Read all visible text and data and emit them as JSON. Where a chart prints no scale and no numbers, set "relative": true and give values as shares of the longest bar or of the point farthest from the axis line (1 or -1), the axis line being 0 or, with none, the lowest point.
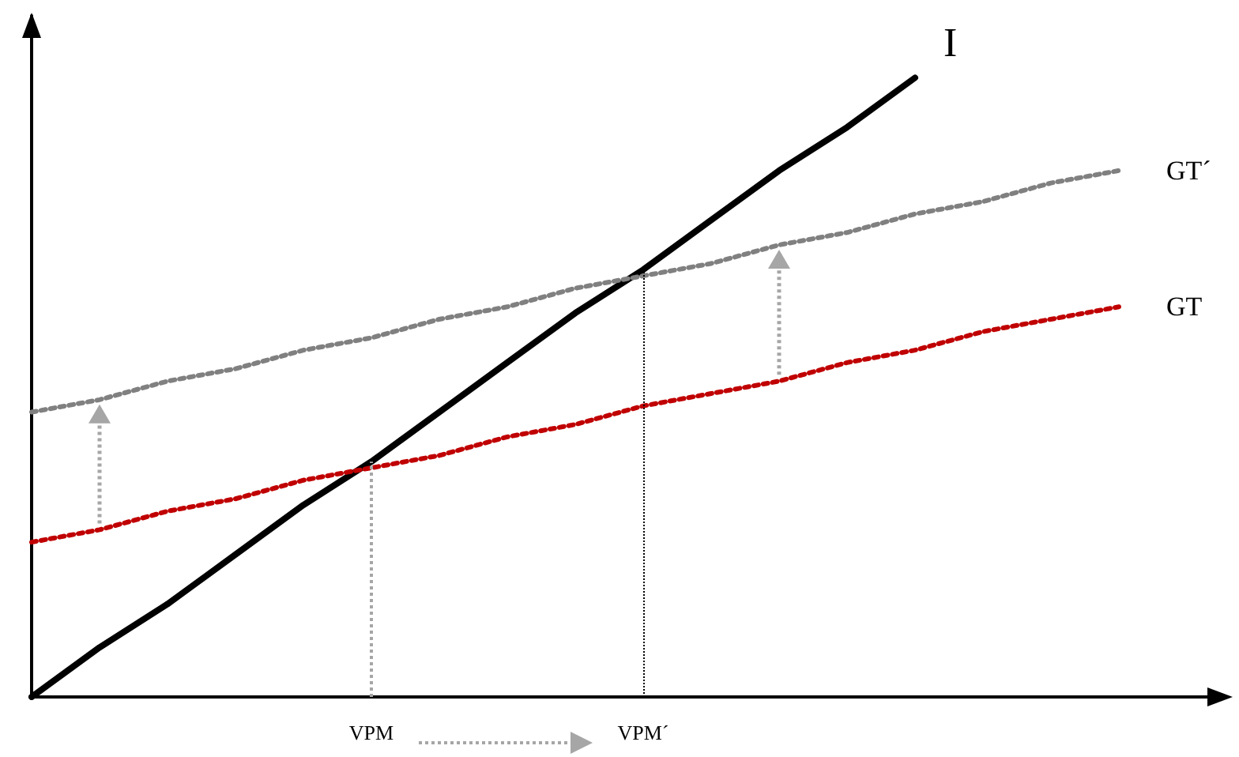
{
  "chart_data": {
    "type": "line",
    "relative": true,
    "legend": false,
    "grid": false,
    "tick_labels": "x",
    "marker": "none",
    "categories": [
      null,
      null,
      null,
      null,
      null,
      "VPM",
      null,
      null,
      null,
      "VPM´",
      null,
      null,
      null,
      null,
      null,
      null,
      null,
      null
    ],
    "series": [
      {
        "name": "I",
        "color": "#000000",
        "line_style": "solid",
        "values": [
          0,
          0.08,
          0.15,
          0.23,
          0.31,
          0.38,
          0.46,
          0.54,
          0.62,
          0.69,
          0.77,
          0.85,
          0.92,
          1,
          null,
          null,
          null,
          null
        ]
      },
      {
        "name": "GT",
        "color": "#c00000",
        "line_style": "dotted",
        "values": [
          0.25,
          0.27,
          0.3,
          0.32,
          0.35,
          0.37,
          0.39,
          0.42,
          0.44,
          0.47,
          0.49,
          0.51,
          0.54,
          0.56,
          0.59,
          0.61,
          0.63,
          null
        ]
      },
      {
        "name": "GT´",
        "color": "#808080",
        "line_style": "dotted",
        "values": [
          0.46,
          0.48,
          0.51,
          0.53,
          0.56,
          0.58,
          0.61,
          0.63,
          0.66,
          0.68,
          0.7,
          0.73,
          0.75,
          0.78,
          0.8,
          0.83,
          0.85,
          null
        ]
      }
    ],
    "ref_lines": [
      {
        "axis": "x",
        "value": "VPM",
        "color": "#a6a6a6",
        "line_style": "dotted"
      },
      {
        "axis": "x",
        "value": "VPM´",
        "color": "#000000",
        "line_style": "dotted"
      }
    ]
  }
}
